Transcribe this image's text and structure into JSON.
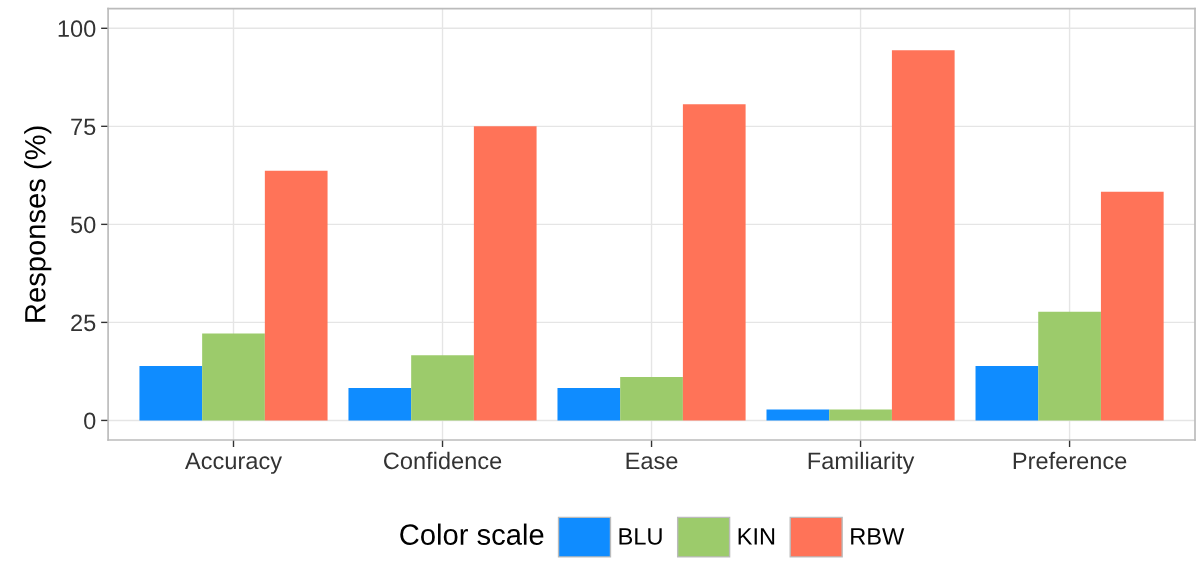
{
  "chart_data": {
    "type": "bar",
    "categories": [
      "Accuracy",
      "Confidence",
      "Ease",
      "Familiarity",
      "Preference"
    ],
    "ylabel": "Responses (%)",
    "legend_title": "Color scale",
    "series": [
      {
        "name": "BLU",
        "color": "#0f8cff",
        "values": [
          13.9,
          8.3,
          8.3,
          2.8,
          13.9
        ]
      },
      {
        "name": "KIN",
        "color": "#9ccb6b",
        "values": [
          22.2,
          16.6,
          11.1,
          2.8,
          27.7
        ]
      },
      {
        "name": "RBW",
        "color": "#ff7358",
        "values": [
          63.7,
          75.0,
          80.6,
          94.4,
          58.3
        ]
      }
    ],
    "ylim": [
      -5,
      105
    ],
    "yticks": [
      0,
      25,
      50,
      75,
      100
    ],
    "grid": true,
    "legend": "bottom"
  }
}
